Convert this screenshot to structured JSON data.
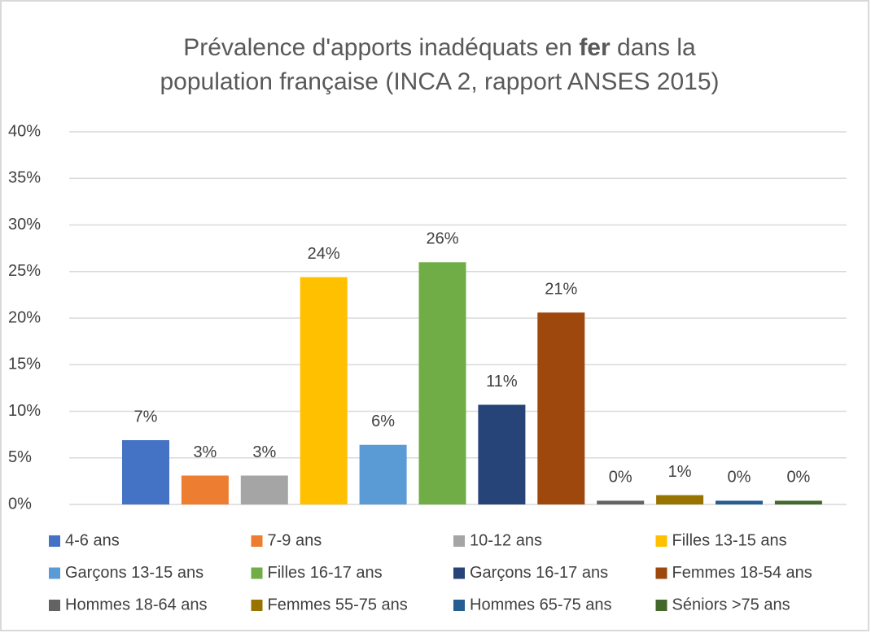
{
  "chart_data": {
    "type": "bar",
    "title": [
      "Prévalence d'apports inadéquats en ",
      "fer",
      " dans la",
      "population française (INCA 2, rapport ANSES 2015)"
    ],
    "ylim": [
      0,
      40
    ],
    "yticks": [
      {
        "value": 0,
        "label": "0%"
      },
      {
        "value": 5,
        "label": "5%"
      },
      {
        "value": 10,
        "label": "10%"
      },
      {
        "value": 15,
        "label": "15%"
      },
      {
        "value": 20,
        "label": "20%"
      },
      {
        "value": 25,
        "label": "25%"
      },
      {
        "value": 30,
        "label": "30%"
      },
      {
        "value": 35,
        "label": "35%"
      },
      {
        "value": 40,
        "label": "40%"
      }
    ],
    "grid": true,
    "legend": "bottom",
    "series": [
      {
        "name": "4-6 ans",
        "color": "#4472c4",
        "values": [
          6.9
        ],
        "value_labels": [
          "7%"
        ]
      },
      {
        "name": "7-9 ans",
        "color": "#ed7d31",
        "values": [
          3.1
        ],
        "value_labels": [
          "3%"
        ]
      },
      {
        "name": "10-12 ans",
        "color": "#a5a5a5",
        "values": [
          3.1
        ],
        "value_labels": [
          "3%"
        ]
      },
      {
        "name": "Filles 13-15 ans",
        "color": "#ffc000",
        "values": [
          24.4
        ],
        "value_labels": [
          "24%"
        ]
      },
      {
        "name": "Garçons 13-15 ans",
        "color": "#5b9bd5",
        "values": [
          6.4
        ],
        "value_labels": [
          "6%"
        ]
      },
      {
        "name": "Filles 16-17 ans",
        "color": "#70ad47",
        "values": [
          26.0
        ],
        "value_labels": [
          "26%"
        ]
      },
      {
        "name": "Garçons 16-17 ans",
        "color": "#264478",
        "values": [
          10.7
        ],
        "value_labels": [
          "11%"
        ]
      },
      {
        "name": "Femmes 18-54 ans",
        "color": "#9e480e",
        "values": [
          20.6
        ],
        "value_labels": [
          "21%"
        ]
      },
      {
        "name": "Hommes 18-64 ans",
        "color": "#636363",
        "values": [
          0.4
        ],
        "value_labels": [
          "0%"
        ]
      },
      {
        "name": "Femmes 55-75 ans",
        "color": "#997300",
        "values": [
          1.0
        ],
        "value_labels": [
          "1%"
        ]
      },
      {
        "name": "Hommes 65-75 ans",
        "color": "#255e91",
        "values": [
          0.4
        ],
        "value_labels": [
          "0%"
        ]
      },
      {
        "name": "Séniors >75 ans",
        "color": "#43682b",
        "values": [
          0.4
        ],
        "value_labels": [
          "0%"
        ]
      }
    ]
  }
}
